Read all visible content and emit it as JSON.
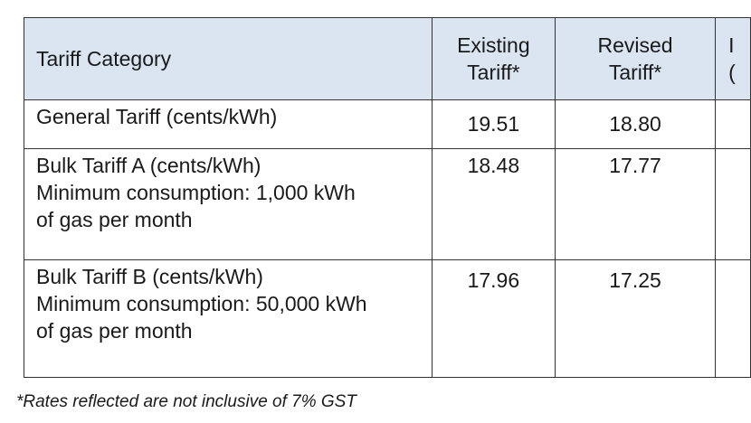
{
  "table": {
    "headers": {
      "category": "Tariff Category",
      "existing_line1": "Existing",
      "existing_line2": "Tariff*",
      "revised_line1": "Revised",
      "revised_line2": "Tariff*",
      "partial_line1": "I",
      "partial_line2": "("
    },
    "rows": [
      {
        "category_lines": [
          "General Tariff (cents/kWh)"
        ],
        "existing": "19.51",
        "revised": "18.80"
      },
      {
        "category_lines": [
          "Bulk Tariff A (cents/kWh)",
          "Minimum consumption: 1,000 kWh",
          "of gas per month"
        ],
        "existing": "18.48",
        "revised": "17.77"
      },
      {
        "category_lines": [
          "Bulk Tariff B (cents/kWh)",
          "Minimum consumption: 50,000 kWh",
          "of gas per month"
        ],
        "existing": "17.96",
        "revised": "17.25"
      }
    ]
  },
  "footnote": "*Rates reflected are not inclusive of 7% GST",
  "colors": {
    "header_background": "#dbe5f1",
    "border": "#333333",
    "text": "#1a1a1a"
  }
}
